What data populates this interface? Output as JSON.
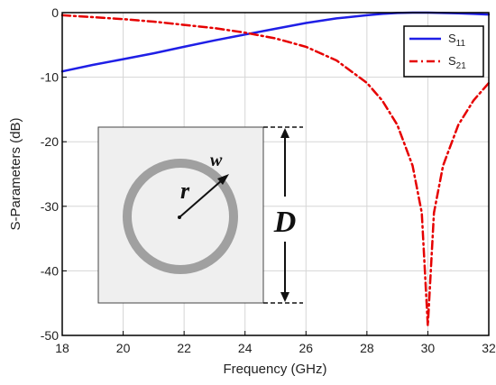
{
  "chart_data": {
    "type": "line",
    "xlabel": "Frequency (GHz)",
    "ylabel": "S-Parameters (dB)",
    "xlim": [
      18,
      32
    ],
    "ylim": [
      -50,
      0
    ],
    "xticks": [
      18,
      20,
      22,
      24,
      26,
      28,
      30,
      32
    ],
    "yticks": [
      0,
      -10,
      -20,
      -30,
      -40,
      -50
    ],
    "grid": true,
    "legend_position": "top-right",
    "series": [
      {
        "name": "S11",
        "name_main": "S",
        "name_sub": "11",
        "color": "#1f1fe6",
        "style": "solid",
        "x": [
          18,
          19,
          20,
          21,
          22,
          23,
          24,
          25,
          26,
          27,
          28,
          28.5,
          29,
          29.5,
          30,
          30.5,
          31,
          31.5,
          32
        ],
        "y": [
          -9.1,
          -8.1,
          -7.2,
          -6.3,
          -5.3,
          -4.3,
          -3.4,
          -2.5,
          -1.6,
          -0.9,
          -0.4,
          -0.2,
          -0.05,
          0,
          0,
          -0.05,
          -0.1,
          -0.2,
          -0.3
        ]
      },
      {
        "name": "S21",
        "name_main": "S",
        "name_sub": "21",
        "color": "#e60000",
        "style": "dashdot",
        "x": [
          18,
          19,
          20,
          21,
          22,
          23,
          24,
          25,
          26,
          27,
          28,
          28.5,
          29,
          29.5,
          29.8,
          30,
          30.2,
          30.5,
          31,
          31.5,
          32
        ],
        "y": [
          -0.4,
          -0.7,
          -1.0,
          -1.4,
          -1.9,
          -2.4,
          -3.1,
          -4.0,
          -5.3,
          -7.4,
          -10.9,
          -13.6,
          -17.4,
          -23.7,
          -31.0,
          -48.5,
          -31.0,
          -23.7,
          -17.4,
          -13.6,
          -10.9
        ]
      }
    ]
  },
  "inset": {
    "label_r": "r",
    "label_w": "w",
    "label_D": "D",
    "panel_color": "#efefef",
    "ring_color": "#a0a0a0"
  }
}
